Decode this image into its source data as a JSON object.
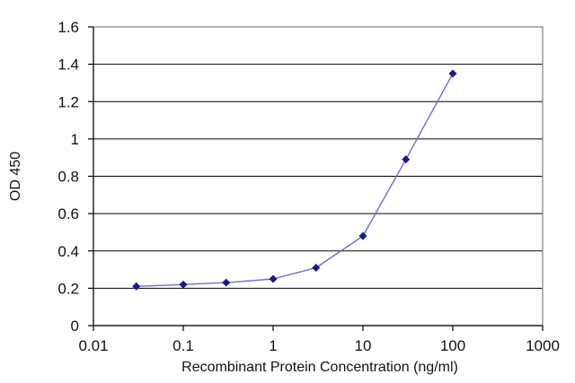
{
  "chart_data": {
    "type": "line",
    "x_scale": "log",
    "xlabel": "Recombinant Protein Concentration (ng/ml)",
    "ylabel": "OD 450",
    "xlim": [
      0.01,
      1000
    ],
    "ylim": [
      0,
      1.6
    ],
    "grid": "horizontal",
    "x_tick_labels": [
      "0.01",
      "0.1",
      "1",
      "10",
      "100",
      "1000"
    ],
    "x_tick_values": [
      0.01,
      0.1,
      1,
      10,
      100,
      1000
    ],
    "y_tick_labels": [
      "0",
      "0.2",
      "0.4",
      "0.6",
      "0.8",
      "1",
      "1.2",
      "1.4",
      "1.6"
    ],
    "y_tick_values": [
      0,
      0.2,
      0.4,
      0.6,
      0.8,
      1.0,
      1.2,
      1.4,
      1.6
    ],
    "series": [
      {
        "x": [
          0.03,
          0.1,
          0.3,
          1,
          3,
          10,
          30,
          100
        ],
        "y": [
          0.21,
          0.22,
          0.23,
          0.25,
          0.31,
          0.48,
          0.89,
          1.35
        ]
      }
    ],
    "colors": {
      "line": "#6e6ec8",
      "marker": "#1a1a8c"
    }
  }
}
